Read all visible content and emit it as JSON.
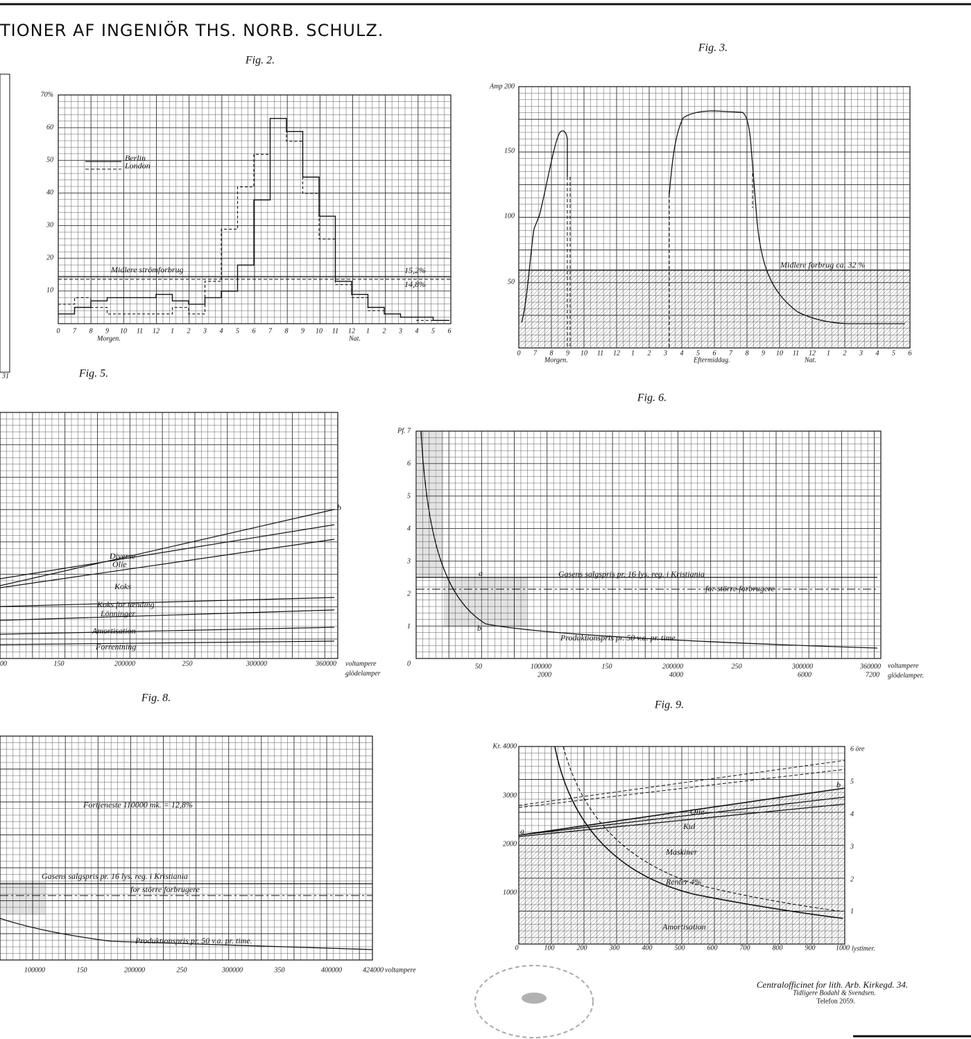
{
  "header": {
    "title": "TIONER AF INGENIÖR THS. NORB.  SCHULZ."
  },
  "left_fragment": {
    "x_ticks": [
      "31"
    ]
  },
  "figures": [
    {
      "label": "Fig. 2.",
      "y_ticks": [
        "70%",
        "60",
        "50",
        "40",
        "30",
        "20",
        "10"
      ],
      "x_ticks": [
        "0",
        "7",
        "8",
        "9",
        "10",
        "11",
        "12",
        "1",
        "2",
        "3",
        "4",
        "5",
        "6",
        "7",
        "8",
        "9",
        "10",
        "11",
        "12",
        "1",
        "2",
        "3",
        "4",
        "5",
        "6"
      ],
      "x_notes": [
        "Morgen.",
        "Nat."
      ],
      "annotations": [
        "Berlin",
        "London",
        "Midlere strömforbrug",
        "15,2%",
        "14,8%"
      ]
    },
    {
      "label": "Fig. 3.",
      "y_ticks": [
        "Amp 200",
        "150",
        "100",
        "50"
      ],
      "x_ticks": [
        "0",
        "7",
        "8",
        "9",
        "10",
        "11",
        "12",
        "1",
        "2",
        "3",
        "4",
        "5",
        "6",
        "7",
        "8",
        "9",
        "10",
        "11",
        "12",
        "1",
        "2",
        "3",
        "4",
        "5",
        "6"
      ],
      "x_notes": [
        "Morgen.",
        "Eftermiddag.",
        "Nat."
      ],
      "annotations": [
        "Midlere forbrug ca. 32 %"
      ]
    },
    {
      "label": "Fig. 5.",
      "x_ticks": [
        "00",
        "150",
        "200000",
        "250",
        "300000",
        "360000"
      ],
      "x_notes": [
        "voltampere",
        "glödelamper"
      ],
      "annotations": [
        "Diverse",
        "Olie",
        "Koks",
        "Koks for tænding",
        "Lönninger",
        "Amortisation",
        "Forrentning",
        "b"
      ]
    },
    {
      "label": "Fig. 6.",
      "y_ticks": [
        "Pf. 7",
        "6",
        "5",
        "4",
        "3",
        "2",
        "1",
        "0"
      ],
      "x_ticks": [
        "50",
        "100000",
        "150",
        "200000",
        "250",
        "300000",
        "360000"
      ],
      "x_ticks_2": [
        "2000",
        "4000",
        "6000",
        "7200"
      ],
      "x_notes": [
        "voltampere",
        "glödelamper."
      ],
      "annotations": [
        "Gasens salgspris pr. 16 lys. reg. i Kristiania",
        "for större forbrugere",
        "Produktionspris pr. 50 v.a. pr. time.",
        "a",
        "b"
      ]
    },
    {
      "label": "Fig. 8.",
      "x_ticks": [
        "100000",
        "150",
        "200000",
        "250",
        "300000",
        "350",
        "400000",
        "424000"
      ],
      "x_notes": [
        "voltampere"
      ],
      "annotations": [
        "Fortjeneste 110000 mk. = 12,8%",
        "Gasens salgspris pr. 16 lys. reg. i Kristiania",
        "for större forbrugere",
        "Produktionspris pr. 50 v.a. pr. time."
      ]
    },
    {
      "label": "Fig. 9.",
      "y_ticks": [
        "Kr. 4000",
        "3000",
        "2000",
        "1000"
      ],
      "y2_ticks": [
        "6 öre",
        "5",
        "4",
        "3",
        "2",
        "1"
      ],
      "x_ticks": [
        "0",
        "100",
        "200",
        "300",
        "400",
        "500",
        "600",
        "700",
        "800",
        "900",
        "1000"
      ],
      "x_notes": [
        "lystimer."
      ],
      "annotations": [
        "Olie",
        "Kul",
        "Maskiner",
        "Renter 4%",
        "Amortisation",
        "a",
        "b"
      ]
    }
  ],
  "footer": {
    "lines": [
      "Centralofficinet for lith. Arb. Kirkegd. 34.",
      "Tidligere Bodahl & Svendsen.",
      "Telefon 2059."
    ]
  }
}
